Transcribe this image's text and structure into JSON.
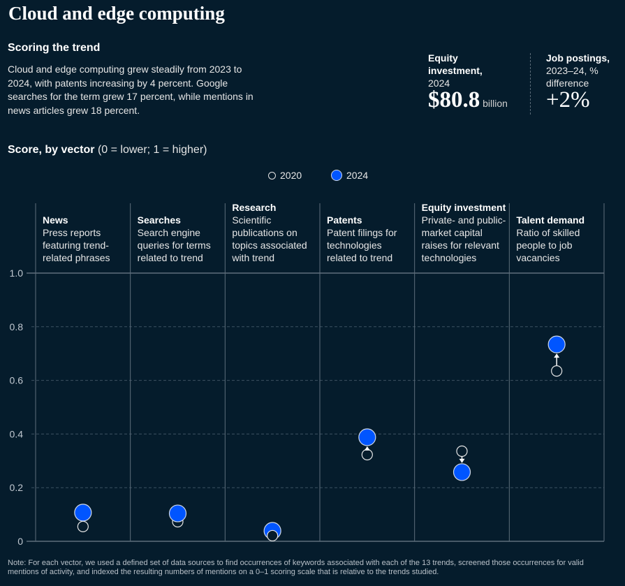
{
  "header": {
    "title": "Cloud and edge computing",
    "subtitle": "Scoring the trend",
    "description": "Cloud and edge computing grew steadily from 2023 to 2024, with patents increasing by 4 percent. Google searches for the term grew 17 percent, while mentions in news articles grew 18 percent."
  },
  "kpis": [
    {
      "label_bold": "Equity investment,",
      "label_rest": "2024",
      "value": "$80.8",
      "unit": "billion"
    },
    {
      "label_bold": "Job postings,",
      "label_rest": "2023–24, % difference",
      "value": "+2%",
      "unit": ""
    }
  ],
  "score_header": {
    "bold": "Score, by vector",
    "rest": "(0 = lower; 1 = higher)"
  },
  "legend": [
    {
      "label": "2020",
      "style": "hollow"
    },
    {
      "label": "2024",
      "style": "filled",
      "color": "#0055ff"
    }
  ],
  "chart_data": {
    "type": "scatter",
    "title": "Score, by vector (0 = lower; 1 = higher)",
    "categories": [
      "News",
      "Searches",
      "Research",
      "Patents",
      "Equity investment",
      "Talent demand"
    ],
    "category_descriptions": [
      "Press reports featuring trend-related phrases",
      "Search engine queries for terms related to trend",
      "Scientific publications on topics associated with trend",
      "Patent filings for technologies related to trend",
      "Private- and public-market capital raises for relevant technologies",
      "Ratio of skilled people to job vacancies"
    ],
    "series": [
      {
        "name": "2020",
        "values": [
          0.055,
          0.073,
          0.021,
          0.323,
          0.336,
          0.635
        ],
        "style": "hollow"
      },
      {
        "name": "2024",
        "values": [
          0.107,
          0.104,
          0.039,
          0.388,
          0.258,
          0.734
        ],
        "color": "#0055ff"
      }
    ],
    "ylim": [
      0,
      1
    ],
    "yticks": [
      0,
      0.2,
      0.4,
      0.6,
      0.8,
      1.0
    ],
    "ytick_labels": [
      "0",
      "0.2",
      "0.4",
      "0.6",
      "0.8",
      "1.0"
    ],
    "grid": true,
    "legend_position": "top-center",
    "arrows_shown": [
      "Patents",
      "Equity investment",
      "Talent demand"
    ]
  },
  "note": "Note: For each vector, we used a defined set of data sources to find occurrences of keywords associated with each of the 13 trends, screened those occurrences for valid mentions of activity, and indexed the resulting numbers of mentions on a 0–1 scoring scale that is relative to the trends studied."
}
